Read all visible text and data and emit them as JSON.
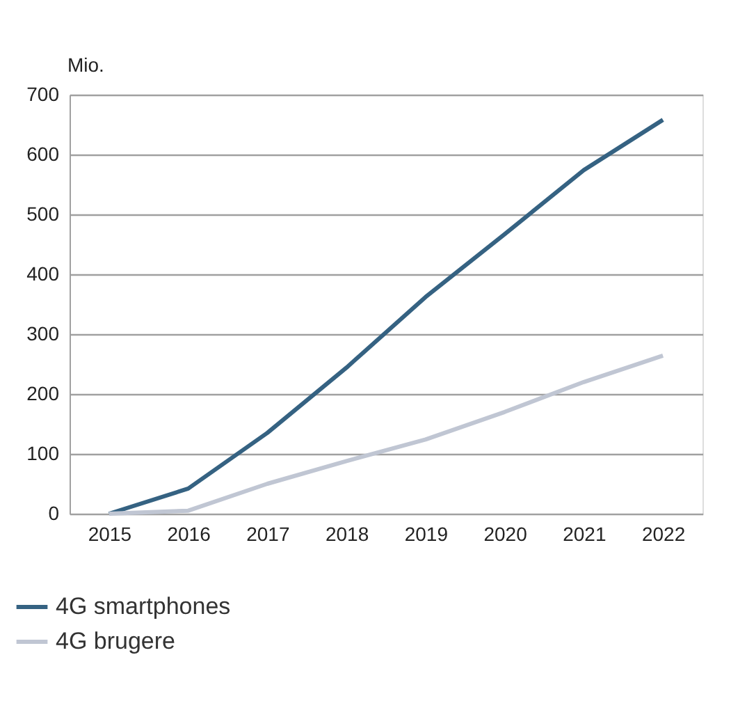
{
  "chart_data": {
    "type": "line",
    "categories": [
      "2015",
      "2016",
      "2017",
      "2018",
      "2019",
      "2020",
      "2021",
      "2022"
    ],
    "ylabel": "Mio.",
    "series": [
      {
        "name": "4G smartphones",
        "color": "#356282",
        "values": [
          0,
          42,
          135,
          244,
          362,
          467,
          574,
          658
        ]
      },
      {
        "name": "4G brugere",
        "color": "#c0c6d3",
        "values": [
          0,
          5,
          50,
          88,
          124,
          170,
          220,
          264
        ]
      }
    ],
    "ylim": [
      0,
      700
    ],
    "yticks": [
      0,
      100,
      200,
      300,
      400,
      500,
      600,
      700
    ],
    "grid": "y",
    "legend": "bottom",
    "marker": "none",
    "line_style": "solid"
  }
}
